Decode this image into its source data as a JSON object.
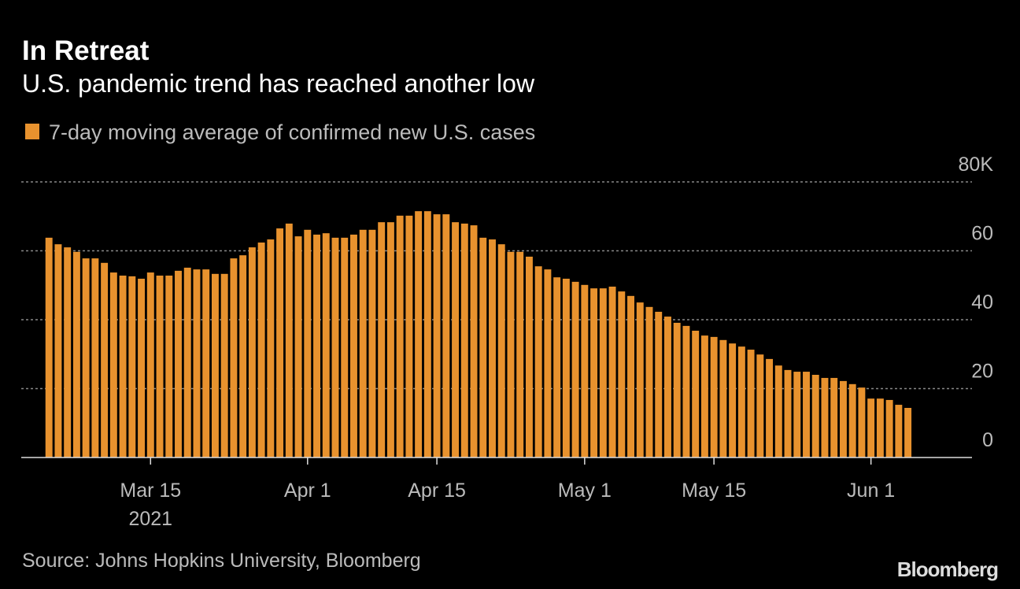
{
  "chart_data": {
    "type": "bar",
    "title": "In Retreat",
    "subtitle": "U.S. pandemic trend has reached another low",
    "series": [
      {
        "name": "7-day moving average of confirmed new U.S. cases",
        "color": "#e8922e",
        "values": [
          63.8,
          61.9,
          61.0,
          59.7,
          57.8,
          57.8,
          56.5,
          53.7,
          52.8,
          52.6,
          51.9,
          53.7,
          52.8,
          52.8,
          54.2,
          55.1,
          54.6,
          54.6,
          53.3,
          53.3,
          57.8,
          58.7,
          61.0,
          62.4,
          63.3,
          66.5,
          67.9,
          64.2,
          66.1,
          64.7,
          65.1,
          63.8,
          63.8,
          64.7,
          66.1,
          66.1,
          68.3,
          68.3,
          70.2,
          70.2,
          71.5,
          71.5,
          70.6,
          70.6,
          68.3,
          67.9,
          67.4,
          63.8,
          63.3,
          61.9,
          59.7,
          59.7,
          58.3,
          55.5,
          54.6,
          52.3,
          51.9,
          51.0,
          50.1,
          49.1,
          49.1,
          49.6,
          48.2,
          46.9,
          45.0,
          43.7,
          42.3,
          40.9,
          39.1,
          38.2,
          36.8,
          35.4,
          35.0,
          34.1,
          33.1,
          32.2,
          31.3,
          29.9,
          28.6,
          26.7,
          25.4,
          24.9,
          24.9,
          24.0,
          23.1,
          23.1,
          22.2,
          21.3,
          20.3,
          17.1,
          17.1,
          16.7,
          15.3,
          14.4
        ]
      }
    ],
    "x": [
      "2021-03-04",
      "2021-03-05",
      "2021-03-06",
      "2021-03-07",
      "2021-03-08",
      "2021-03-09",
      "2021-03-10",
      "2021-03-11",
      "2021-03-12",
      "2021-03-13",
      "2021-03-14",
      "2021-03-15",
      "2021-03-16",
      "2021-03-17",
      "2021-03-18",
      "2021-03-19",
      "2021-03-20",
      "2021-03-21",
      "2021-03-22",
      "2021-03-23",
      "2021-03-24",
      "2021-03-25",
      "2021-03-26",
      "2021-03-27",
      "2021-03-28",
      "2021-03-29",
      "2021-03-30",
      "2021-03-31",
      "2021-04-01",
      "2021-04-02",
      "2021-04-03",
      "2021-04-04",
      "2021-04-05",
      "2021-04-06",
      "2021-04-07",
      "2021-04-08",
      "2021-04-09",
      "2021-04-10",
      "2021-04-11",
      "2021-04-12",
      "2021-04-13",
      "2021-04-14",
      "2021-04-15",
      "2021-04-16",
      "2021-04-17",
      "2021-04-18",
      "2021-04-19",
      "2021-04-20",
      "2021-04-21",
      "2021-04-22",
      "2021-04-23",
      "2021-04-24",
      "2021-04-25",
      "2021-04-26",
      "2021-04-27",
      "2021-04-28",
      "2021-04-29",
      "2021-04-30",
      "2021-05-01",
      "2021-05-02",
      "2021-05-03",
      "2021-05-04",
      "2021-05-05",
      "2021-05-06",
      "2021-05-07",
      "2021-05-08",
      "2021-05-09",
      "2021-05-10",
      "2021-05-11",
      "2021-05-12",
      "2021-05-13",
      "2021-05-14",
      "2021-05-15",
      "2021-05-16",
      "2021-05-17",
      "2021-05-18",
      "2021-05-19",
      "2021-05-20",
      "2021-05-21",
      "2021-05-22",
      "2021-05-23",
      "2021-05-24",
      "2021-05-25",
      "2021-05-26",
      "2021-05-27",
      "2021-05-28",
      "2021-05-29",
      "2021-05-30",
      "2021-05-31",
      "2021-06-01",
      "2021-06-02",
      "2021-06-03",
      "2021-06-04",
      "2021-06-05"
    ],
    "xlim": [
      "2021-03-01",
      "2021-06-11"
    ],
    "xticks": [
      {
        "value": "2021-03-15",
        "label": "Mar 15"
      },
      {
        "value": "2021-04-01",
        "label": "Apr 1"
      },
      {
        "value": "2021-04-15",
        "label": "Apr 15"
      },
      {
        "value": "2021-05-01",
        "label": "May 1"
      },
      {
        "value": "2021-05-15",
        "label": "May 15"
      },
      {
        "value": "2021-06-01",
        "label": "Jun 1"
      }
    ],
    "x_year_label": "2021",
    "ylim": [
      0,
      80
    ],
    "yticks": [
      0,
      20,
      40,
      60,
      {
        "value": 80,
        "label": "80K"
      }
    ],
    "grid": true,
    "source": "Source: Johns Hopkins University, Bloomberg",
    "logo": "Bloomberg"
  }
}
